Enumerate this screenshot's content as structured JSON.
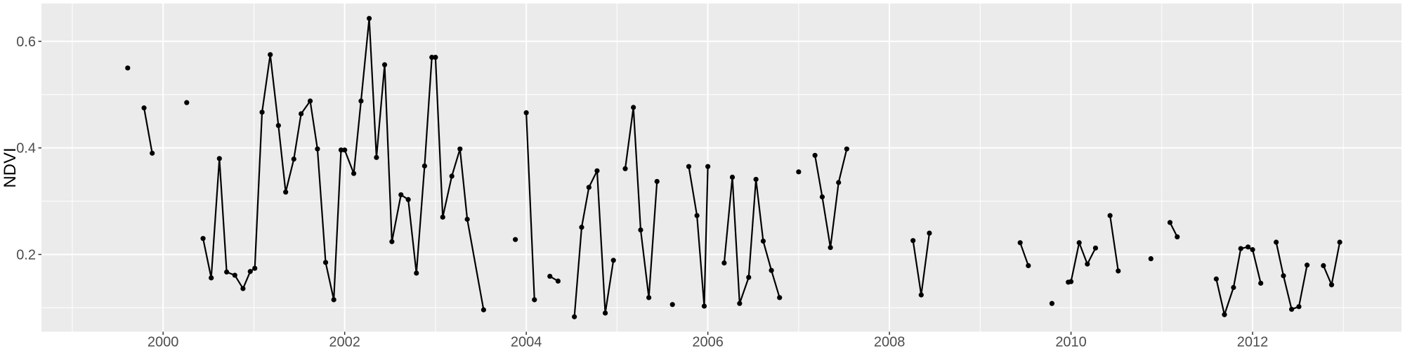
{
  "chart_data": {
    "type": "line",
    "title": "",
    "xlabel": "",
    "ylabel": "NDVI",
    "legend": "none",
    "grid": true,
    "panel_bg": "#EBEBEB",
    "outer_bg": "#FFFFFF",
    "grid_color": "#FFFFFF",
    "line_color": "#000000",
    "point_color": "#000000",
    "tick_color": "#333333",
    "tick_label_color": "#4D4D4D",
    "xlim": [
      1998.66,
      2013.64
    ],
    "ylim": [
      0.055,
      0.671
    ],
    "x_ticks": [
      2000,
      2002,
      2004,
      2006,
      2008,
      2010,
      2012
    ],
    "x_tick_labels": [
      "2000",
      "2002",
      "2004",
      "2006",
      "2008",
      "2010",
      "2012"
    ],
    "x_minor": [
      1999,
      2001,
      2003,
      2005,
      2007,
      2009,
      2011,
      2013
    ],
    "y_ticks": [
      0.2,
      0.4,
      0.6
    ],
    "y_tick_labels": [
      "0.2",
      "0.4",
      "0.6"
    ],
    "y_minor": [
      0.1,
      0.3,
      0.5
    ],
    "series": [
      {
        "name": "segment-01",
        "points": [
          [
            1999.61,
            0.55
          ]
        ]
      },
      {
        "name": "segment-02",
        "points": [
          [
            1999.79,
            0.475
          ],
          [
            1999.88,
            0.39
          ]
        ]
      },
      {
        "name": "segment-03",
        "points": [
          [
            2000.26,
            0.485
          ]
        ]
      },
      {
        "name": "segment-04",
        "points": [
          [
            2000.44,
            0.23
          ],
          [
            2000.53,
            0.156
          ],
          [
            2000.62,
            0.38
          ],
          [
            2000.7,
            0.167
          ],
          [
            2000.79,
            0.161
          ],
          [
            2000.88,
            0.136
          ],
          [
            2000.96,
            0.168
          ],
          [
            2001.01,
            0.174
          ],
          [
            2001.09,
            0.467
          ],
          [
            2001.18,
            0.575
          ],
          [
            2001.27,
            0.442
          ],
          [
            2001.35,
            0.317
          ],
          [
            2001.44,
            0.379
          ],
          [
            2001.52,
            0.464
          ],
          [
            2001.62,
            0.488
          ],
          [
            2001.7,
            0.398
          ],
          [
            2001.79,
            0.185
          ],
          [
            2001.88,
            0.115
          ],
          [
            2001.96,
            0.396
          ],
          [
            2002.0,
            0.396
          ],
          [
            2002.1,
            0.352
          ],
          [
            2002.18,
            0.488
          ],
          [
            2002.27,
            0.643
          ],
          [
            2002.35,
            0.382
          ],
          [
            2002.44,
            0.556
          ],
          [
            2002.52,
            0.224
          ],
          [
            2002.62,
            0.312
          ],
          [
            2002.7,
            0.303
          ],
          [
            2002.79,
            0.165
          ],
          [
            2002.88,
            0.366
          ],
          [
            2002.96,
            0.57
          ],
          [
            2003.0,
            0.57
          ],
          [
            2003.08,
            0.27
          ],
          [
            2003.18,
            0.347
          ],
          [
            2003.27,
            0.398
          ],
          [
            2003.35,
            0.266
          ],
          [
            2003.53,
            0.096
          ]
        ]
      },
      {
        "name": "segment-05",
        "points": [
          [
            2003.88,
            0.228
          ]
        ]
      },
      {
        "name": "segment-06",
        "points": [
          [
            2004.0,
            0.466
          ],
          [
            2004.09,
            0.115
          ]
        ]
      },
      {
        "name": "segment-07",
        "points": [
          [
            2004.26,
            0.159
          ],
          [
            2004.35,
            0.15
          ]
        ]
      },
      {
        "name": "segment-08",
        "points": [
          [
            2004.53,
            0.083
          ],
          [
            2004.61,
            0.251
          ],
          [
            2004.69,
            0.326
          ],
          [
            2004.78,
            0.357
          ],
          [
            2004.87,
            0.09
          ],
          [
            2004.96,
            0.189
          ]
        ]
      },
      {
        "name": "segment-09",
        "points": [
          [
            2005.09,
            0.361
          ],
          [
            2005.18,
            0.476
          ],
          [
            2005.26,
            0.246
          ],
          [
            2005.35,
            0.119
          ],
          [
            2005.44,
            0.337
          ]
        ]
      },
      {
        "name": "segment-10",
        "points": [
          [
            2005.61,
            0.106
          ]
        ]
      },
      {
        "name": "segment-11",
        "points": [
          [
            2005.79,
            0.365
          ],
          [
            2005.88,
            0.273
          ],
          [
            2005.96,
            0.103
          ],
          [
            2006.0,
            0.365
          ]
        ]
      },
      {
        "name": "segment-12",
        "points": [
          [
            2006.18,
            0.184
          ],
          [
            2006.27,
            0.345
          ],
          [
            2006.35,
            0.108
          ],
          [
            2006.45,
            0.157
          ],
          [
            2006.53,
            0.341
          ],
          [
            2006.61,
            0.225
          ],
          [
            2006.7,
            0.17
          ],
          [
            2006.79,
            0.119
          ]
        ]
      },
      {
        "name": "segment-13",
        "points": [
          [
            2007.0,
            0.355
          ]
        ]
      },
      {
        "name": "segment-14",
        "points": [
          [
            2007.18,
            0.386
          ],
          [
            2007.26,
            0.308
          ],
          [
            2007.35,
            0.213
          ],
          [
            2007.44,
            0.335
          ],
          [
            2007.53,
            0.398
          ]
        ]
      },
      {
        "name": "segment-15",
        "points": [
          [
            2008.26,
            0.226
          ],
          [
            2008.35,
            0.124
          ],
          [
            2008.44,
            0.24
          ]
        ]
      },
      {
        "name": "segment-16",
        "points": [
          [
            2009.44,
            0.222
          ],
          [
            2009.53,
            0.179
          ]
        ]
      },
      {
        "name": "segment-17",
        "points": [
          [
            2009.79,
            0.108
          ]
        ]
      },
      {
        "name": "segment-18",
        "points": [
          [
            2009.97,
            0.148
          ],
          [
            2010.0,
            0.149
          ],
          [
            2010.09,
            0.222
          ],
          [
            2010.18,
            0.182
          ],
          [
            2010.27,
            0.212
          ]
        ]
      },
      {
        "name": "segment-19",
        "points": [
          [
            2010.43,
            0.273
          ],
          [
            2010.52,
            0.169
          ]
        ]
      },
      {
        "name": "segment-20",
        "points": [
          [
            2010.88,
            0.192
          ]
        ]
      },
      {
        "name": "segment-21",
        "points": [
          [
            2011.09,
            0.26
          ],
          [
            2011.17,
            0.233
          ]
        ]
      },
      {
        "name": "segment-22",
        "points": [
          [
            2011.6,
            0.154
          ],
          [
            2011.69,
            0.087
          ],
          [
            2011.79,
            0.138
          ],
          [
            2011.87,
            0.211
          ],
          [
            2011.95,
            0.214
          ],
          [
            2012.0,
            0.209
          ],
          [
            2012.09,
            0.146
          ]
        ]
      },
      {
        "name": "segment-23",
        "points": [
          [
            2012.26,
            0.223
          ],
          [
            2012.34,
            0.16
          ],
          [
            2012.43,
            0.097
          ],
          [
            2012.51,
            0.102
          ],
          [
            2012.6,
            0.18
          ]
        ]
      },
      {
        "name": "segment-24",
        "points": [
          [
            2012.78,
            0.179
          ],
          [
            2012.87,
            0.143
          ],
          [
            2012.96,
            0.223
          ]
        ]
      }
    ]
  }
}
